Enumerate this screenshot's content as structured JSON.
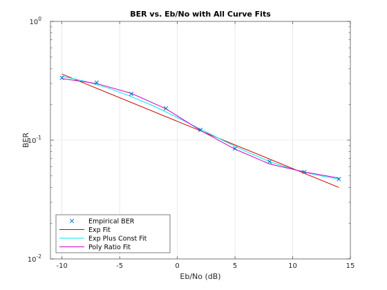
{
  "chart_data": {
    "type": "line",
    "title": "BER vs. Eb/No with All Curve Fits",
    "xlabel": "Eb/No (dB)",
    "ylabel": "BER",
    "xlim": [
      -11,
      15
    ],
    "ylim": [
      0.01,
      1
    ],
    "yscale": "log",
    "grid": true,
    "legend_position": "bottom-left",
    "x_ticks": [
      "-10",
      "-5",
      "0",
      "5",
      "10",
      "15"
    ],
    "x_tick_values": [
      -10,
      -5,
      0,
      5,
      10,
      15
    ],
    "y_ticks": [
      {
        "base": "10",
        "exp": "-2",
        "value": 0.01
      },
      {
        "base": "10",
        "exp": "-1",
        "value": 0.1
      },
      {
        "base": "10",
        "exp": "0",
        "value": 1
      }
    ],
    "series": [
      {
        "name": "Empirical BER",
        "kind": "markers",
        "marker": "x",
        "color": "#0072BD",
        "x": [
          -10,
          -7,
          -4,
          -1,
          2,
          5,
          8,
          11,
          14
        ],
        "y": [
          0.335,
          0.305,
          0.245,
          0.185,
          0.122,
          0.085,
          0.066,
          0.054,
          0.047
        ]
      },
      {
        "name": "Exp Fit",
        "kind": "line",
        "color": "#CC0000",
        "x": [
          -10,
          14
        ],
        "y": [
          0.36,
          0.04
        ]
      },
      {
        "name": "Exp Plus Const Fit",
        "kind": "line",
        "color": "#00E5EE",
        "x": [
          -10,
          -8,
          -6,
          -4,
          -2,
          0,
          2,
          4,
          6,
          8,
          10,
          12,
          14
        ],
        "y": [
          0.345,
          0.313,
          0.275,
          0.233,
          0.193,
          0.155,
          0.124,
          0.099,
          0.08,
          0.066,
          0.057,
          0.051,
          0.047
        ]
      },
      {
        "name": "Poly Ratio Fit",
        "kind": "line",
        "color": "#CC00CC",
        "x": [
          -10,
          -7,
          -4,
          -1,
          2,
          5,
          8,
          11,
          14
        ],
        "y": [
          0.33,
          0.3,
          0.248,
          0.184,
          0.121,
          0.084,
          0.063,
          0.054,
          0.048
        ]
      }
    ]
  }
}
